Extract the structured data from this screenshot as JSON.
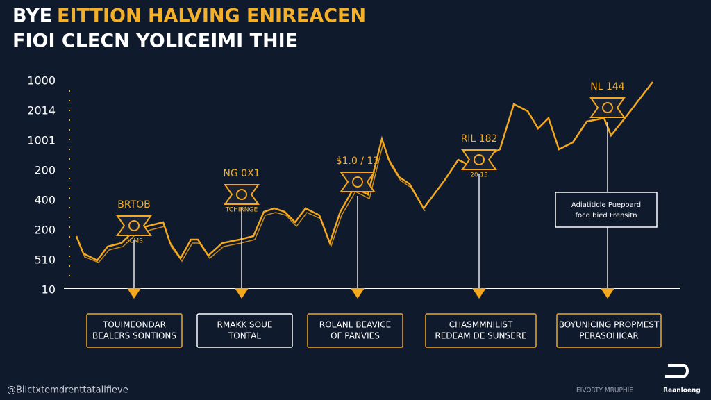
{
  "header": {
    "title_prefix": "BYE",
    "title_main": "EITTION HALVING ENIREACEN",
    "subtitle": "FIOI CLECN YOLICEIMI THIE"
  },
  "axis_labels": [
    "1000",
    "2014",
    "1001",
    "200",
    "400",
    "200",
    "510",
    "10"
  ],
  "markers": [
    {
      "label": "BRTOB",
      "sub": "BCMS"
    },
    {
      "label": "NG 0X1",
      "sub": "TCHIRNGE"
    },
    {
      "label": "$1.0 / 13",
      "sub": ""
    },
    {
      "label": "RIL 182",
      "sub": "20 13"
    },
    {
      "label": "NL 144",
      "sub": ""
    }
  ],
  "boxes": [
    [
      "TOUIMEONDAR",
      "BEALERS SONTIONS"
    ],
    [
      "RMAKK SOUE",
      "TONTAL"
    ],
    [
      "ROLANL BEAVICE",
      "OF PANVIES"
    ],
    [
      "CHASMMNILIST",
      "REDEAM DE SUNSERE"
    ],
    [
      "BOYUNICING PROPMEST",
      "PERASOHICAR"
    ]
  ],
  "callout": [
    "Adiatiticle Puepoard",
    "focd bied Frensitn"
  ],
  "footer": {
    "left": "@Blictxtemdrenttatalifieve",
    "center": "EIVORTY MRUPHIE",
    "logo": "Reanloeng"
  }
}
